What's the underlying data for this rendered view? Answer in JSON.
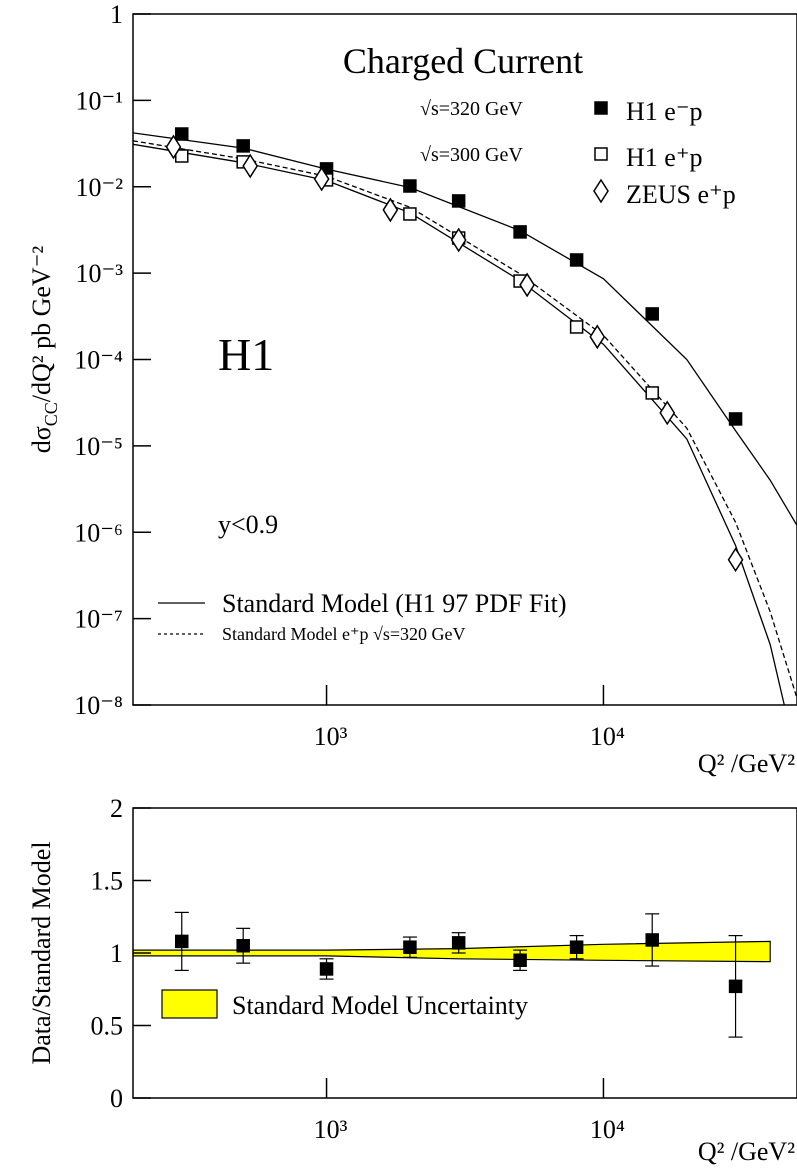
{
  "chart_data": [
    {
      "type": "scatter",
      "log_x": true,
      "log_y": true,
      "title": "Charged Current",
      "annotations": [
        "H1",
        "y<0.9"
      ],
      "ylabel_parts": [
        "dσ",
        "CC",
        "/dQ² pb GeV⁻²"
      ],
      "xlabel": "Q²  /GeV²",
      "xlim": [
        200,
        50000
      ],
      "ylim": [
        1e-08,
        1
      ],
      "xticks": [
        {
          "value": 1000,
          "label": "10³"
        },
        {
          "value": 10000,
          "label": "10⁴"
        }
      ],
      "yticks": [
        1,
        {
          "value": 0.1,
          "label": "10⁻¹"
        },
        {
          "value": 0.01,
          "label": "10⁻²"
        },
        {
          "value": 0.001,
          "label": "10⁻³"
        },
        {
          "value": 0.0001,
          "label": "10⁻⁴"
        },
        {
          "value": 1e-05,
          "label": "10⁻⁵"
        },
        {
          "value": 1e-06,
          "label": "10⁻⁶"
        },
        {
          "value": 1e-07,
          "label": "10⁻⁷"
        },
        {
          "value": 1e-08,
          "label": "10⁻⁸"
        }
      ],
      "series": [
        {
          "name": "H1 e⁻p",
          "energy": "√s=320 GeV",
          "marker": "filled-square",
          "color": "#000000",
          "x": [
            300,
            500,
            1000,
            2000,
            3000,
            5000,
            8000,
            15000,
            30000
          ],
          "values": [
            0.0408,
            0.0297,
            0.0161,
            0.0102,
            0.00685,
            0.003,
            0.00142,
            0.000337,
            2.05e-05
          ]
        },
        {
          "name": "H1 e⁺p",
          "energy": "√s=300 GeV",
          "marker": "open-square",
          "color": "#000000",
          "x": [
            300,
            500,
            1000,
            2000,
            3000,
            5000,
            8000,
            15000
          ],
          "values": [
            0.0227,
            0.0194,
            0.012,
            0.00484,
            0.00255,
            0.00081,
            0.000238,
            4.1e-05
          ]
        },
        {
          "name": "ZEUS e⁺p",
          "marker": "open-diamond",
          "color": "#000000",
          "x": [
            280,
            530,
            960,
            1700,
            3000,
            5300,
            9500,
            17000,
            30000
          ],
          "values": [
            0.0289,
            0.0174,
            0.0123,
            0.00539,
            0.00242,
            0.00073,
            0.000183,
            2.41e-05,
            4.8e-07
          ]
        }
      ],
      "curves": [
        {
          "name": "Standard Model (H1 97 PDF Fit)",
          "style": "solid",
          "x": [
            200,
            500,
            1000,
            2000,
            5000,
            10000,
            20000,
            30000,
            40000,
            50000
          ],
          "values": [
            0.042,
            0.028,
            0.016,
            0.0098,
            0.0031,
            0.00086,
            0.0001,
            1.5e-05,
            4e-06,
            1.2e-06
          ]
        },
        {
          "style": "solid",
          "x": [
            200,
            500,
            1000,
            2000,
            5000,
            10000,
            20000,
            30000,
            40000,
            45000
          ],
          "values": [
            0.031,
            0.019,
            0.0118,
            0.005,
            0.00082,
            0.00015,
            1.2e-05,
            7e-07,
            5e-08,
            1e-08
          ]
        },
        {
          "name": "Standard Model e⁺p √s=320 GeV",
          "style": "dashed",
          "x": [
            200,
            500,
            1000,
            2000,
            5000,
            10000,
            20000,
            30000,
            40000,
            50000
          ],
          "values": [
            0.034,
            0.021,
            0.0132,
            0.0058,
            0.00098,
            0.00019,
            1.6e-05,
            1.3e-06,
            1.2e-07,
            1.2e-08
          ]
        }
      ]
    },
    {
      "type": "ratio",
      "log_x": true,
      "ylabel": "Data/Standard Model",
      "xlabel": "Q²  /GeV²",
      "xlim": [
        200,
        50000
      ],
      "ylim": [
        0,
        2
      ],
      "xticks": [
        {
          "value": 1000,
          "label": "10³"
        },
        {
          "value": 10000,
          "label": "10⁴"
        }
      ],
      "yticks": [
        0,
        0.5,
        1,
        1.5,
        2
      ],
      "series": [
        {
          "marker": "filled-square",
          "color": "#000000",
          "x": [
            300,
            500,
            1000,
            2000,
            3000,
            5000,
            8000,
            15000,
            30000
          ],
          "values": [
            1.08,
            1.05,
            0.89,
            1.04,
            1.07,
            0.95,
            1.04,
            1.09,
            0.77
          ],
          "errors": [
            0.2,
            0.12,
            0.07,
            0.07,
            0.07,
            0.07,
            0.08,
            0.18,
            0.35
          ]
        }
      ],
      "band": {
        "name": "Standard Model Uncertainty",
        "color": "#ffff00",
        "x": [
          200,
          1000,
          3000,
          10000,
          40000
        ],
        "lower": [
          0.98,
          0.98,
          0.96,
          0.95,
          0.94
        ],
        "upper": [
          1.02,
          1.02,
          1.03,
          1.06,
          1.08
        ]
      }
    }
  ]
}
